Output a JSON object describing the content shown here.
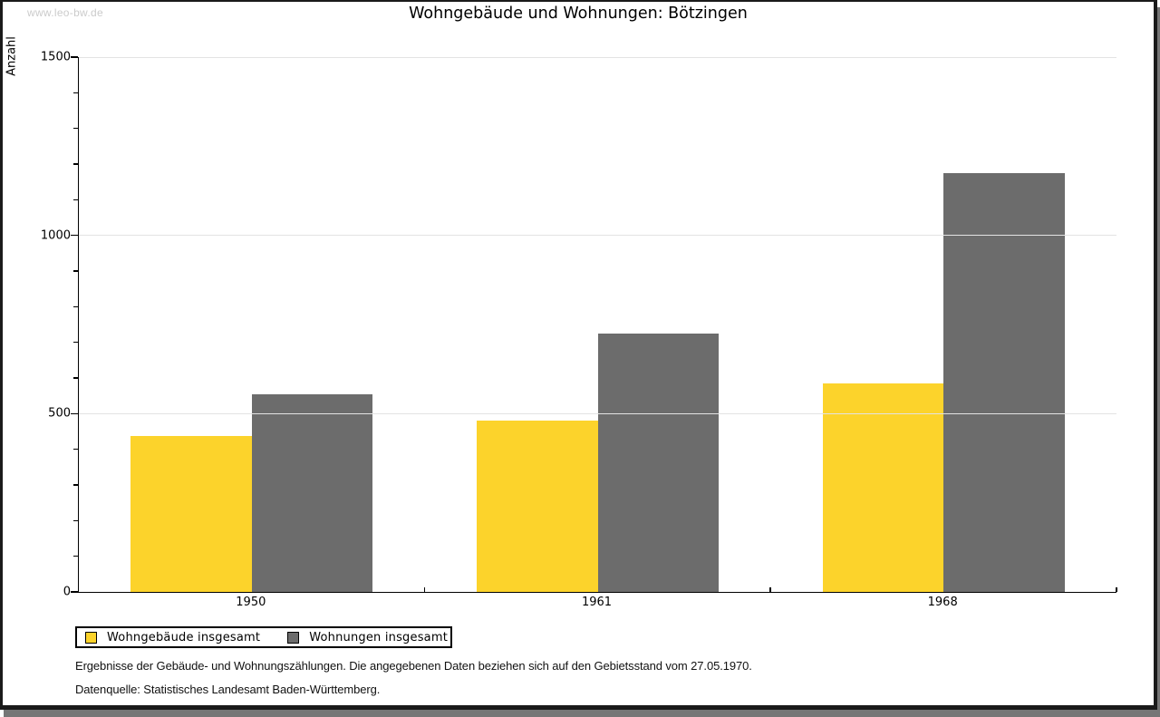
{
  "watermark": "www.leo-bw.de",
  "chart_data": {
    "type": "bar",
    "title": "Wohngebäude und Wohnungen: Bötzingen",
    "ylabel": "Anzahl",
    "xlabel": "",
    "categories": [
      "1950",
      "1961",
      "1968"
    ],
    "series": [
      {
        "name": "Wohngebäude insgesamt",
        "color": "#fcd32b",
        "values": [
          437,
          480,
          585
        ]
      },
      {
        "name": "Wohnungen insgesamt",
        "color": "#6c6c6c",
        "values": [
          555,
          725,
          1175
        ]
      }
    ],
    "ylim": [
      0,
      1500
    ],
    "yticks": [
      0,
      500,
      1000,
      1500
    ],
    "minor_tick_step": 100,
    "grid": true,
    "legend_position": "bottom-left"
  },
  "footnotes": {
    "line1": "Ergebnisse der Gebäude- und Wohnungszählungen. Die angegebenen Daten beziehen sich auf den Gebietsstand vom 27.05.1970.",
    "line2": "Datenquelle: Statistisches Landesamt Baden-Württemberg."
  },
  "colors": {
    "grid": "#e3e3e3",
    "axis": "#000000",
    "watermark": "#cbcbcb",
    "frame_border": "#1a1a1a",
    "shadow": "#767676"
  }
}
